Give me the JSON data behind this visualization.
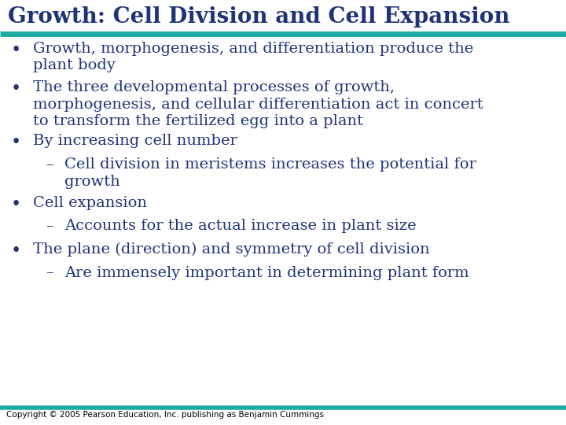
{
  "title": "Growth: Cell Division and Cell Expansion",
  "title_color": "#1F3478",
  "title_fontsize": 20,
  "divider_color": "#1AADA0",
  "background_color": "#FFFFFF",
  "bullet_color": "#1F3478",
  "text_color": "#1F3478",
  "footer_text": "Copyright © 2005 Pearson Education, Inc. publishing as Benjamin Cummings",
  "footer_fontsize": 7.5,
  "content_fontsize": 14,
  "bullet_items": [
    {
      "level": 0,
      "text": "Growth, morphogenesis, and differentiation produce the\nplant body",
      "nlines": 2
    },
    {
      "level": 0,
      "text": "The three developmental processes of growth,\nmorphogenesis, and cellular differentiation act in concert\nto transform the fertilized egg into a plant",
      "nlines": 3
    },
    {
      "level": 0,
      "text": "By increasing cell number",
      "nlines": 1
    },
    {
      "level": 1,
      "text": "Cell division in meristems increases the potential for\ngrowth",
      "nlines": 2
    },
    {
      "level": 0,
      "text": "Cell expansion",
      "nlines": 1
    },
    {
      "level": 1,
      "text": "Accounts for the actual increase in plant size",
      "nlines": 1
    },
    {
      "level": 0,
      "text": "The plane (direction) and symmetry of cell division",
      "nlines": 1
    },
    {
      "level": 1,
      "text": "Are immensely important in determining plant form",
      "nlines": 1
    }
  ]
}
